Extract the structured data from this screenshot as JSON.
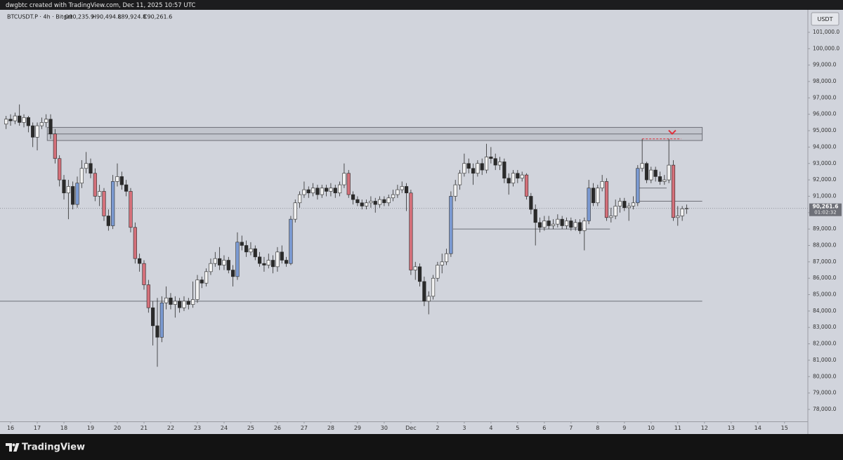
{
  "chart_data": {
    "type": "candlestick",
    "header": "dwgbtc created with TradingView.com, Dec 11, 2025 10:57 UTC",
    "legend": {
      "symbol": "BTCUSDT.P · 4h · Bitget",
      "open": "O90,235.9",
      "high": "H90,494.8",
      "low": "L89,924.8",
      "close": "C90,261.6"
    },
    "currency": "USDT",
    "brand": "TradingView",
    "colors": {
      "up": "#f2f2f2",
      "down": "#2a2a2a",
      "strong_up": "#7b9ad2",
      "strong_down": "#d4707a",
      "outline": "#2a2a2a",
      "level": "#6e7078",
      "signal": "#e0303c",
      "price_tag": "#6e7078"
    },
    "xlim": [
      -9.5,
      717
    ],
    "ylim": [
      77270,
      102370
    ],
    "xticks": [
      {
        "value": 0,
        "label": "16"
      },
      {
        "value": 24,
        "label": "17"
      },
      {
        "value": 48,
        "label": "18"
      },
      {
        "value": 72,
        "label": "19"
      },
      {
        "value": 96,
        "label": "20"
      },
      {
        "value": 120,
        "label": "21"
      },
      {
        "value": 144,
        "label": "22"
      },
      {
        "value": 168,
        "label": "23"
      },
      {
        "value": 192,
        "label": "24"
      },
      {
        "value": 216,
        "label": "25"
      },
      {
        "value": 240,
        "label": "26"
      },
      {
        "value": 264,
        "label": "27"
      },
      {
        "value": 288,
        "label": "28"
      },
      {
        "value": 312,
        "label": "29"
      },
      {
        "value": 336,
        "label": "30"
      },
      {
        "value": 360,
        "label": "Dec"
      },
      {
        "value": 384,
        "label": "2"
      },
      {
        "value": 408,
        "label": "3"
      },
      {
        "value": 432,
        "label": "4"
      },
      {
        "value": 456,
        "label": "5"
      },
      {
        "value": 480,
        "label": "6"
      },
      {
        "value": 504,
        "label": "7"
      },
      {
        "value": 528,
        "label": "8"
      },
      {
        "value": 552,
        "label": "9"
      },
      {
        "value": 576,
        "label": "10"
      },
      {
        "value": 600,
        "label": "11"
      },
      {
        "value": 624,
        "label": "12"
      },
      {
        "value": 648,
        "label": "13"
      },
      {
        "value": 672,
        "label": "14"
      },
      {
        "value": 696,
        "label": "15"
      }
    ],
    "yticks": [
      {
        "value": 78000,
        "label": "78,000.0"
      },
      {
        "value": 79000,
        "label": "79,000.0"
      },
      {
        "value": 80000,
        "label": "80,000.0"
      },
      {
        "value": 81000,
        "label": "81,000.0"
      },
      {
        "value": 82000,
        "label": "82,000.0"
      },
      {
        "value": 83000,
        "label": "83,000.0"
      },
      {
        "value": 84000,
        "label": "84,000.0"
      },
      {
        "value": 85000,
        "label": "85,000.0"
      },
      {
        "value": 86000,
        "label": "86,000.0"
      },
      {
        "value": 87000,
        "label": "87,000.0"
      },
      {
        "value": 88000,
        "label": "88,000.0"
      },
      {
        "value": 89000,
        "label": "89,000.0"
      },
      {
        "value": 90000,
        "label": "90,000.0"
      },
      {
        "value": 91000,
        "label": "91,000.0"
      },
      {
        "value": 92000,
        "label": "92,000.0"
      },
      {
        "value": 93000,
        "label": "93,000.0"
      },
      {
        "value": 94000,
        "label": "94,000.0"
      },
      {
        "value": 95000,
        "label": "95,000.0"
      },
      {
        "value": 96000,
        "label": "96,000.0"
      },
      {
        "value": 97000,
        "label": "97,000.0"
      },
      {
        "value": 98000,
        "label": "98,000.0"
      },
      {
        "value": 99000,
        "label": "99,000.0"
      },
      {
        "value": 100000,
        "label": "100,000.0"
      },
      {
        "value": 101000,
        "label": "101,000.0"
      }
    ],
    "last_price": {
      "value": 90261.6,
      "label": "90,261.6",
      "countdown": "01:02:32"
    },
    "zones": [
      {
        "top": 95200,
        "bottom": 94400,
        "mid": 94800,
        "x": [
          33,
          622
        ]
      }
    ],
    "levels": [
      {
        "price": 84600,
        "x": [
          -9.5,
          622
        ]
      },
      {
        "price": 89000,
        "x": [
          398,
          539
        ]
      },
      {
        "price": 91500,
        "x": [
          565,
          590
        ]
      },
      {
        "price": 90700,
        "x": [
          562,
          622
        ]
      }
    ],
    "signal": {
      "price": 94500,
      "x": [
        568,
        603
      ],
      "arrow_x": 595,
      "arrow_price": 94850
    },
    "x": [
      -4,
      0,
      4,
      8,
      12,
      16,
      20,
      24,
      28,
      32,
      36,
      40,
      44,
      48,
      52,
      56,
      60,
      64,
      68,
      72,
      76,
      80,
      84,
      88,
      92,
      96,
      100,
      104,
      108,
      112,
      116,
      120,
      124,
      128,
      132,
      136,
      140,
      144,
      148,
      152,
      156,
      160,
      164,
      168,
      172,
      176,
      180,
      184,
      188,
      192,
      196,
      200,
      204,
      208,
      212,
      216,
      220,
      224,
      228,
      232,
      236,
      240,
      244,
      248,
      252,
      256,
      260,
      264,
      268,
      272,
      276,
      280,
      284,
      288,
      292,
      296,
      300,
      304,
      308,
      312,
      316,
      320,
      324,
      328,
      332,
      336,
      340,
      344,
      348,
      352,
      356,
      360,
      364,
      368,
      372,
      376,
      380,
      384,
      388,
      392,
      396,
      400,
      404,
      408,
      412,
      416,
      420,
      424,
      428,
      432,
      436,
      440,
      444,
      448,
      452,
      456,
      460,
      464,
      468,
      472,
      476,
      480,
      484,
      488,
      492,
      496,
      500,
      504,
      508,
      512,
      516,
      520,
      524,
      528,
      532,
      536,
      540,
      544,
      548,
      552,
      556,
      560,
      564,
      568,
      572,
      576,
      580,
      584,
      588,
      592,
      596,
      600,
      604,
      608
    ],
    "ohlc": [
      [
        95400,
        95900,
        95100,
        95700
      ],
      [
        95700,
        96000,
        95300,
        95600
      ],
      [
        95600,
        96100,
        95400,
        95900
      ],
      [
        95900,
        96600,
        95300,
        95500
      ],
      [
        95500,
        96000,
        95200,
        95800
      ],
      [
        95800,
        95900,
        94900,
        95300
      ],
      [
        95300,
        95500,
        94000,
        94600
      ],
      [
        94600,
        95500,
        93800,
        95300
      ],
      [
        95300,
        95800,
        95100,
        95500
      ],
      [
        95500,
        96000,
        95200,
        95700
      ],
      [
        95700,
        96000,
        94500,
        94800
      ],
      [
        94800,
        95100,
        93000,
        93300
      ],
      [
        93300,
        93500,
        91600,
        92000
      ],
      [
        92000,
        92300,
        90800,
        91200
      ],
      [
        91200,
        92000,
        89600,
        91600
      ],
      [
        91600,
        91900,
        90200,
        90500
      ],
      [
        90500,
        92200,
        90300,
        91800
      ],
      [
        91800,
        93200,
        91500,
        92700
      ],
      [
        92700,
        93700,
        92400,
        93000
      ],
      [
        93000,
        93300,
        92100,
        92400
      ],
      [
        92400,
        92700,
        90700,
        91000
      ],
      [
        91000,
        91700,
        90400,
        91300
      ],
      [
        91300,
        91500,
        89500,
        89800
      ],
      [
        89800,
        90200,
        88900,
        89200
      ],
      [
        89200,
        92300,
        89000,
        91900
      ],
      [
        91900,
        93000,
        91600,
        92200
      ],
      [
        92200,
        92500,
        91400,
        91700
      ],
      [
        91700,
        92000,
        91000,
        91300
      ],
      [
        91300,
        91500,
        88800,
        89100
      ],
      [
        89100,
        89400,
        86900,
        87200
      ],
      [
        87200,
        87500,
        86400,
        86900
      ],
      [
        86900,
        87100,
        85300,
        85600
      ],
      [
        85600,
        85900,
        83900,
        84200
      ],
      [
        84200,
        84600,
        81900,
        83100
      ],
      [
        83100,
        84800,
        80600,
        82400
      ],
      [
        82400,
        84900,
        82100,
        84500
      ],
      [
        84500,
        85500,
        84100,
        84800
      ],
      [
        84800,
        85100,
        84100,
        84400
      ],
      [
        84400,
        84900,
        83600,
        84600
      ],
      [
        84600,
        84800,
        83900,
        84200
      ],
      [
        84200,
        84900,
        84000,
        84600
      ],
      [
        84600,
        84800,
        84100,
        84400
      ],
      [
        84400,
        85800,
        84200,
        84700
      ],
      [
        84700,
        86200,
        84500,
        85900
      ],
      [
        85900,
        86100,
        85400,
        85700
      ],
      [
        85700,
        86600,
        85500,
        86400
      ],
      [
        86400,
        87200,
        86200,
        86900
      ],
      [
        86900,
        87600,
        86700,
        87200
      ],
      [
        87200,
        87900,
        86500,
        86800
      ],
      [
        86800,
        87400,
        86500,
        87100
      ],
      [
        87100,
        87300,
        86300,
        86500
      ],
      [
        86500,
        86800,
        85500,
        86100
      ],
      [
        86100,
        88800,
        85900,
        88200
      ],
      [
        88200,
        88600,
        87700,
        88000
      ],
      [
        88000,
        88300,
        87300,
        87600
      ],
      [
        87600,
        88200,
        87400,
        87800
      ],
      [
        87800,
        88000,
        87100,
        87300
      ],
      [
        87300,
        87600,
        86700,
        86900
      ],
      [
        86900,
        87300,
        86400,
        86800
      ],
      [
        86800,
        87500,
        86600,
        87100
      ],
      [
        87100,
        87400,
        86300,
        86700
      ],
      [
        86700,
        87900,
        86400,
        87600
      ],
      [
        87600,
        88000,
        86900,
        87100
      ],
      [
        87100,
        87300,
        86700,
        86900
      ],
      [
        86900,
        89800,
        86800,
        89600
      ],
      [
        89600,
        90800,
        89400,
        90600
      ],
      [
        90600,
        91300,
        90300,
        91100
      ],
      [
        91100,
        91900,
        90900,
        91400
      ],
      [
        91400,
        91600,
        90900,
        91200
      ],
      [
        91200,
        91800,
        91000,
        91500
      ],
      [
        91500,
        91700,
        90800,
        91100
      ],
      [
        91100,
        91700,
        90900,
        91500
      ],
      [
        91500,
        91700,
        91000,
        91300
      ],
      [
        91300,
        91800,
        91000,
        91500
      ],
      [
        91500,
        91700,
        90900,
        91200
      ],
      [
        91200,
        91900,
        91000,
        91700
      ],
      [
        91700,
        93000,
        91500,
        92400
      ],
      [
        92400,
        92600,
        90900,
        91100
      ],
      [
        91100,
        91300,
        90500,
        90800
      ],
      [
        90800,
        91000,
        90400,
        90600
      ],
      [
        90600,
        90800,
        90200,
        90400
      ],
      [
        90400,
        90800,
        90200,
        90600
      ],
      [
        90600,
        91000,
        90300,
        90700
      ],
      [
        90700,
        90900,
        90000,
        90500
      ],
      [
        90500,
        91000,
        90300,
        90800
      ],
      [
        90800,
        91000,
        90400,
        90600
      ],
      [
        90600,
        91100,
        90400,
        90900
      ],
      [
        90900,
        91400,
        90700,
        91100
      ],
      [
        91100,
        91700,
        90900,
        91400
      ],
      [
        91400,
        91900,
        91200,
        91600
      ],
      [
        91600,
        91800,
        90100,
        91200
      ],
      [
        91200,
        91400,
        86200,
        86500
      ],
      [
        86500,
        87000,
        85900,
        86700
      ],
      [
        86700,
        86900,
        85500,
        85800
      ],
      [
        85800,
        86100,
        84300,
        84600
      ],
      [
        84600,
        85200,
        83800,
        84900
      ],
      [
        84900,
        86200,
        84700,
        86000
      ],
      [
        86000,
        87000,
        85800,
        86800
      ],
      [
        86800,
        87500,
        86300,
        87000
      ],
      [
        87000,
        87800,
        86800,
        87500
      ],
      [
        87500,
        91300,
        87300,
        91000
      ],
      [
        91000,
        92000,
        90700,
        91700
      ],
      [
        91700,
        92600,
        91400,
        92400
      ],
      [
        92400,
        93600,
        92200,
        93000
      ],
      [
        93000,
        93300,
        92400,
        92700
      ],
      [
        92700,
        93000,
        91700,
        92400
      ],
      [
        92400,
        93200,
        92200,
        93000
      ],
      [
        93000,
        93300,
        92300,
        92600
      ],
      [
        92600,
        94200,
        92400,
        93400
      ],
      [
        93400,
        94000,
        93000,
        93300
      ],
      [
        93300,
        93600,
        92600,
        92900
      ],
      [
        92900,
        93400,
        92600,
        93100
      ],
      [
        93100,
        93300,
        91800,
        92100
      ],
      [
        92100,
        92400,
        91100,
        91800
      ],
      [
        91800,
        92600,
        91600,
        92400
      ],
      [
        92400,
        92600,
        91800,
        92100
      ],
      [
        92100,
        92500,
        91900,
        92300
      ],
      [
        92300,
        92400,
        90800,
        91000
      ],
      [
        91000,
        91200,
        89900,
        90200
      ],
      [
        90200,
        90500,
        88000,
        89400
      ],
      [
        89400,
        89700,
        88800,
        89100
      ],
      [
        89100,
        89800,
        88900,
        89500
      ],
      [
        89500,
        89800,
        89000,
        89200
      ],
      [
        89200,
        89600,
        89000,
        89300
      ],
      [
        89300,
        89900,
        89100,
        89600
      ],
      [
        89600,
        89800,
        89000,
        89200
      ],
      [
        89200,
        89700,
        89000,
        89500
      ],
      [
        89500,
        89700,
        88900,
        89100
      ],
      [
        89100,
        89600,
        88900,
        89400
      ],
      [
        89400,
        89600,
        88700,
        88900
      ],
      [
        88900,
        89700,
        87700,
        89500
      ],
      [
        89500,
        92000,
        89300,
        91500
      ],
      [
        91500,
        91800,
        90400,
        90600
      ],
      [
        90600,
        91700,
        90400,
        91500
      ],
      [
        91500,
        92300,
        91300,
        91900
      ],
      [
        91900,
        92100,
        89500,
        89700
      ],
      [
        89700,
        90300,
        89400,
        89800
      ],
      [
        89800,
        90800,
        89600,
        90400
      ],
      [
        90400,
        90900,
        90000,
        90700
      ],
      [
        90700,
        90900,
        90100,
        90300
      ],
      [
        90300,
        90600,
        89500,
        90400
      ],
      [
        90400,
        91000,
        90200,
        90600
      ],
      [
        90600,
        92900,
        90400,
        92700
      ],
      [
        92700,
        94500,
        92500,
        93000
      ],
      [
        93000,
        93100,
        91800,
        92000
      ],
      [
        92000,
        92800,
        91800,
        92600
      ],
      [
        92600,
        92800,
        91900,
        92200
      ],
      [
        92200,
        92500,
        91700,
        91900
      ],
      [
        91900,
        92300,
        91700,
        92000
      ],
      [
        92000,
        94500,
        91800,
        92900
      ],
      [
        92900,
        93200,
        89500,
        89700
      ],
      [
        89700,
        90400,
        89200,
        89800
      ],
      [
        89800,
        90400,
        89500,
        90235.9
      ],
      [
        90235.9,
        90494.8,
        89924.8,
        90261.6
      ]
    ]
  }
}
